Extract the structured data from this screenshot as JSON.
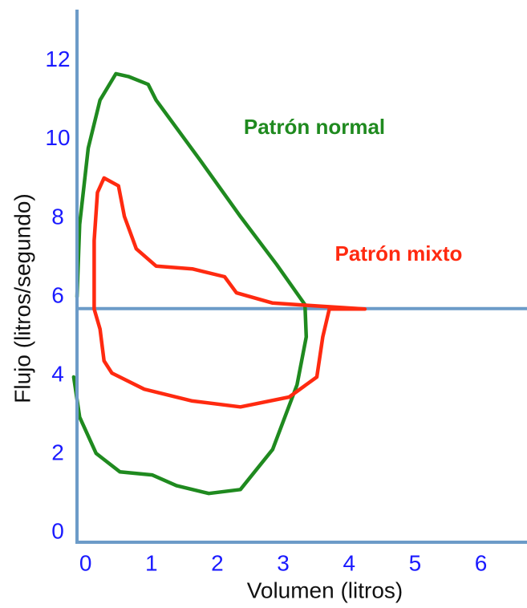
{
  "chart_data": {
    "type": "line",
    "x_label": "Volumen (litros)",
    "y_label": "Flujo (litros/segundo)",
    "xlim": [
      -0.13,
      6.7
    ],
    "ylim": [
      -0.24,
      13.3
    ],
    "xticks": [
      0,
      1,
      2,
      3,
      4,
      5,
      6
    ],
    "yticks": [
      0,
      2,
      4,
      6,
      8,
      10,
      12
    ],
    "grid": false,
    "reference_line": 5.7,
    "axis_color": "#6c9bc8",
    "tick_color": "#1a1aff",
    "series": [
      {
        "name": "Patrón normal",
        "color": "#1f8a1f",
        "x": [
          -0.13,
          -0.09,
          0.04,
          0.22,
          0.46,
          0.65,
          0.95,
          1.07,
          1.74,
          2.35,
          2.9,
          3.33,
          3.35,
          3.21,
          2.84,
          2.35,
          1.87,
          1.38,
          1.01,
          0.52,
          0.16,
          -0.09,
          -0.18
        ],
        "values": [
          6.0,
          7.84,
          9.78,
          11.0,
          11.67,
          11.6,
          11.4,
          11.0,
          9.47,
          8.04,
          6.82,
          5.8,
          4.98,
          3.76,
          2.12,
          1.1,
          1.0,
          1.2,
          1.47,
          1.55,
          2.02,
          2.94,
          3.96
        ]
      },
      {
        "name": "Patrón mixto",
        "color": "#ff2a10",
        "x": [
          0.13,
          0.13,
          0.18,
          0.28,
          0.5,
          0.59,
          0.77,
          1.07,
          1.62,
          2.11,
          2.29,
          2.84,
          3.57,
          4.24,
          3.7,
          3.6,
          3.51,
          3.09,
          2.35,
          1.62,
          0.89,
          0.4,
          0.28,
          0.22,
          0.13
        ],
        "values": [
          5.69,
          7.43,
          8.65,
          9.02,
          8.82,
          8.04,
          7.22,
          6.78,
          6.71,
          6.51,
          6.1,
          5.84,
          5.76,
          5.69,
          5.69,
          4.98,
          3.96,
          3.45,
          3.2,
          3.35,
          3.65,
          4.06,
          4.37,
          5.18,
          5.69
        ]
      }
    ]
  }
}
